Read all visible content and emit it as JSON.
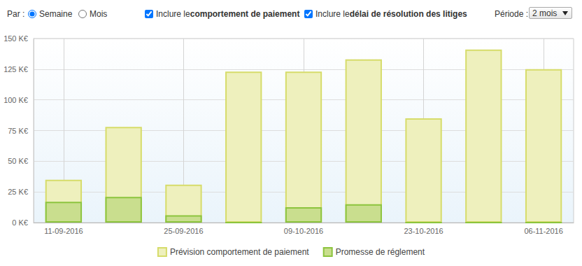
{
  "controls": {
    "group_label": "Par :",
    "radios": [
      {
        "label": "Semaine",
        "checked": true
      },
      {
        "label": "Mois",
        "checked": false
      }
    ],
    "checkboxes": [
      {
        "prefix": "Inclure le ",
        "bold": "comportement de paiement",
        "checked": true
      },
      {
        "prefix": "Inclure le ",
        "bold": "délai de résolution des litiges",
        "checked": true
      }
    ],
    "period_label": "Période :",
    "period_value": "2 mois"
  },
  "chart_data": {
    "type": "bar",
    "categories": [
      "11-09-2016",
      null,
      "25-09-2016",
      null,
      "09-10-2016",
      null,
      "23-10-2016",
      null,
      "06-11-2016"
    ],
    "series": [
      {
        "name": "Prévision comportement de paiement",
        "color": "#eef0bd",
        "values": [
          35,
          78,
          31,
          123,
          123,
          133,
          85,
          141,
          125
        ]
      },
      {
        "name": "Promesse de réglement",
        "color": "#c9de8e",
        "values": [
          17,
          21,
          6,
          0,
          12.5,
          15,
          0,
          0,
          0
        ]
      }
    ],
    "ylim": [
      0,
      150
    ],
    "yticks": [
      {
        "value": 0,
        "label": "0 K€"
      },
      {
        "value": 25,
        "label": "25 K€"
      },
      {
        "value": 50,
        "label": "50 K€"
      },
      {
        "value": 75,
        "label": "75 K€"
      },
      {
        "value": 100,
        "label": "100 K€"
      },
      {
        "value": 125,
        "label": "125 K€"
      },
      {
        "value": 150,
        "label": "150 K€"
      }
    ],
    "grid": true,
    "legend": "bottom",
    "stacked": false
  }
}
